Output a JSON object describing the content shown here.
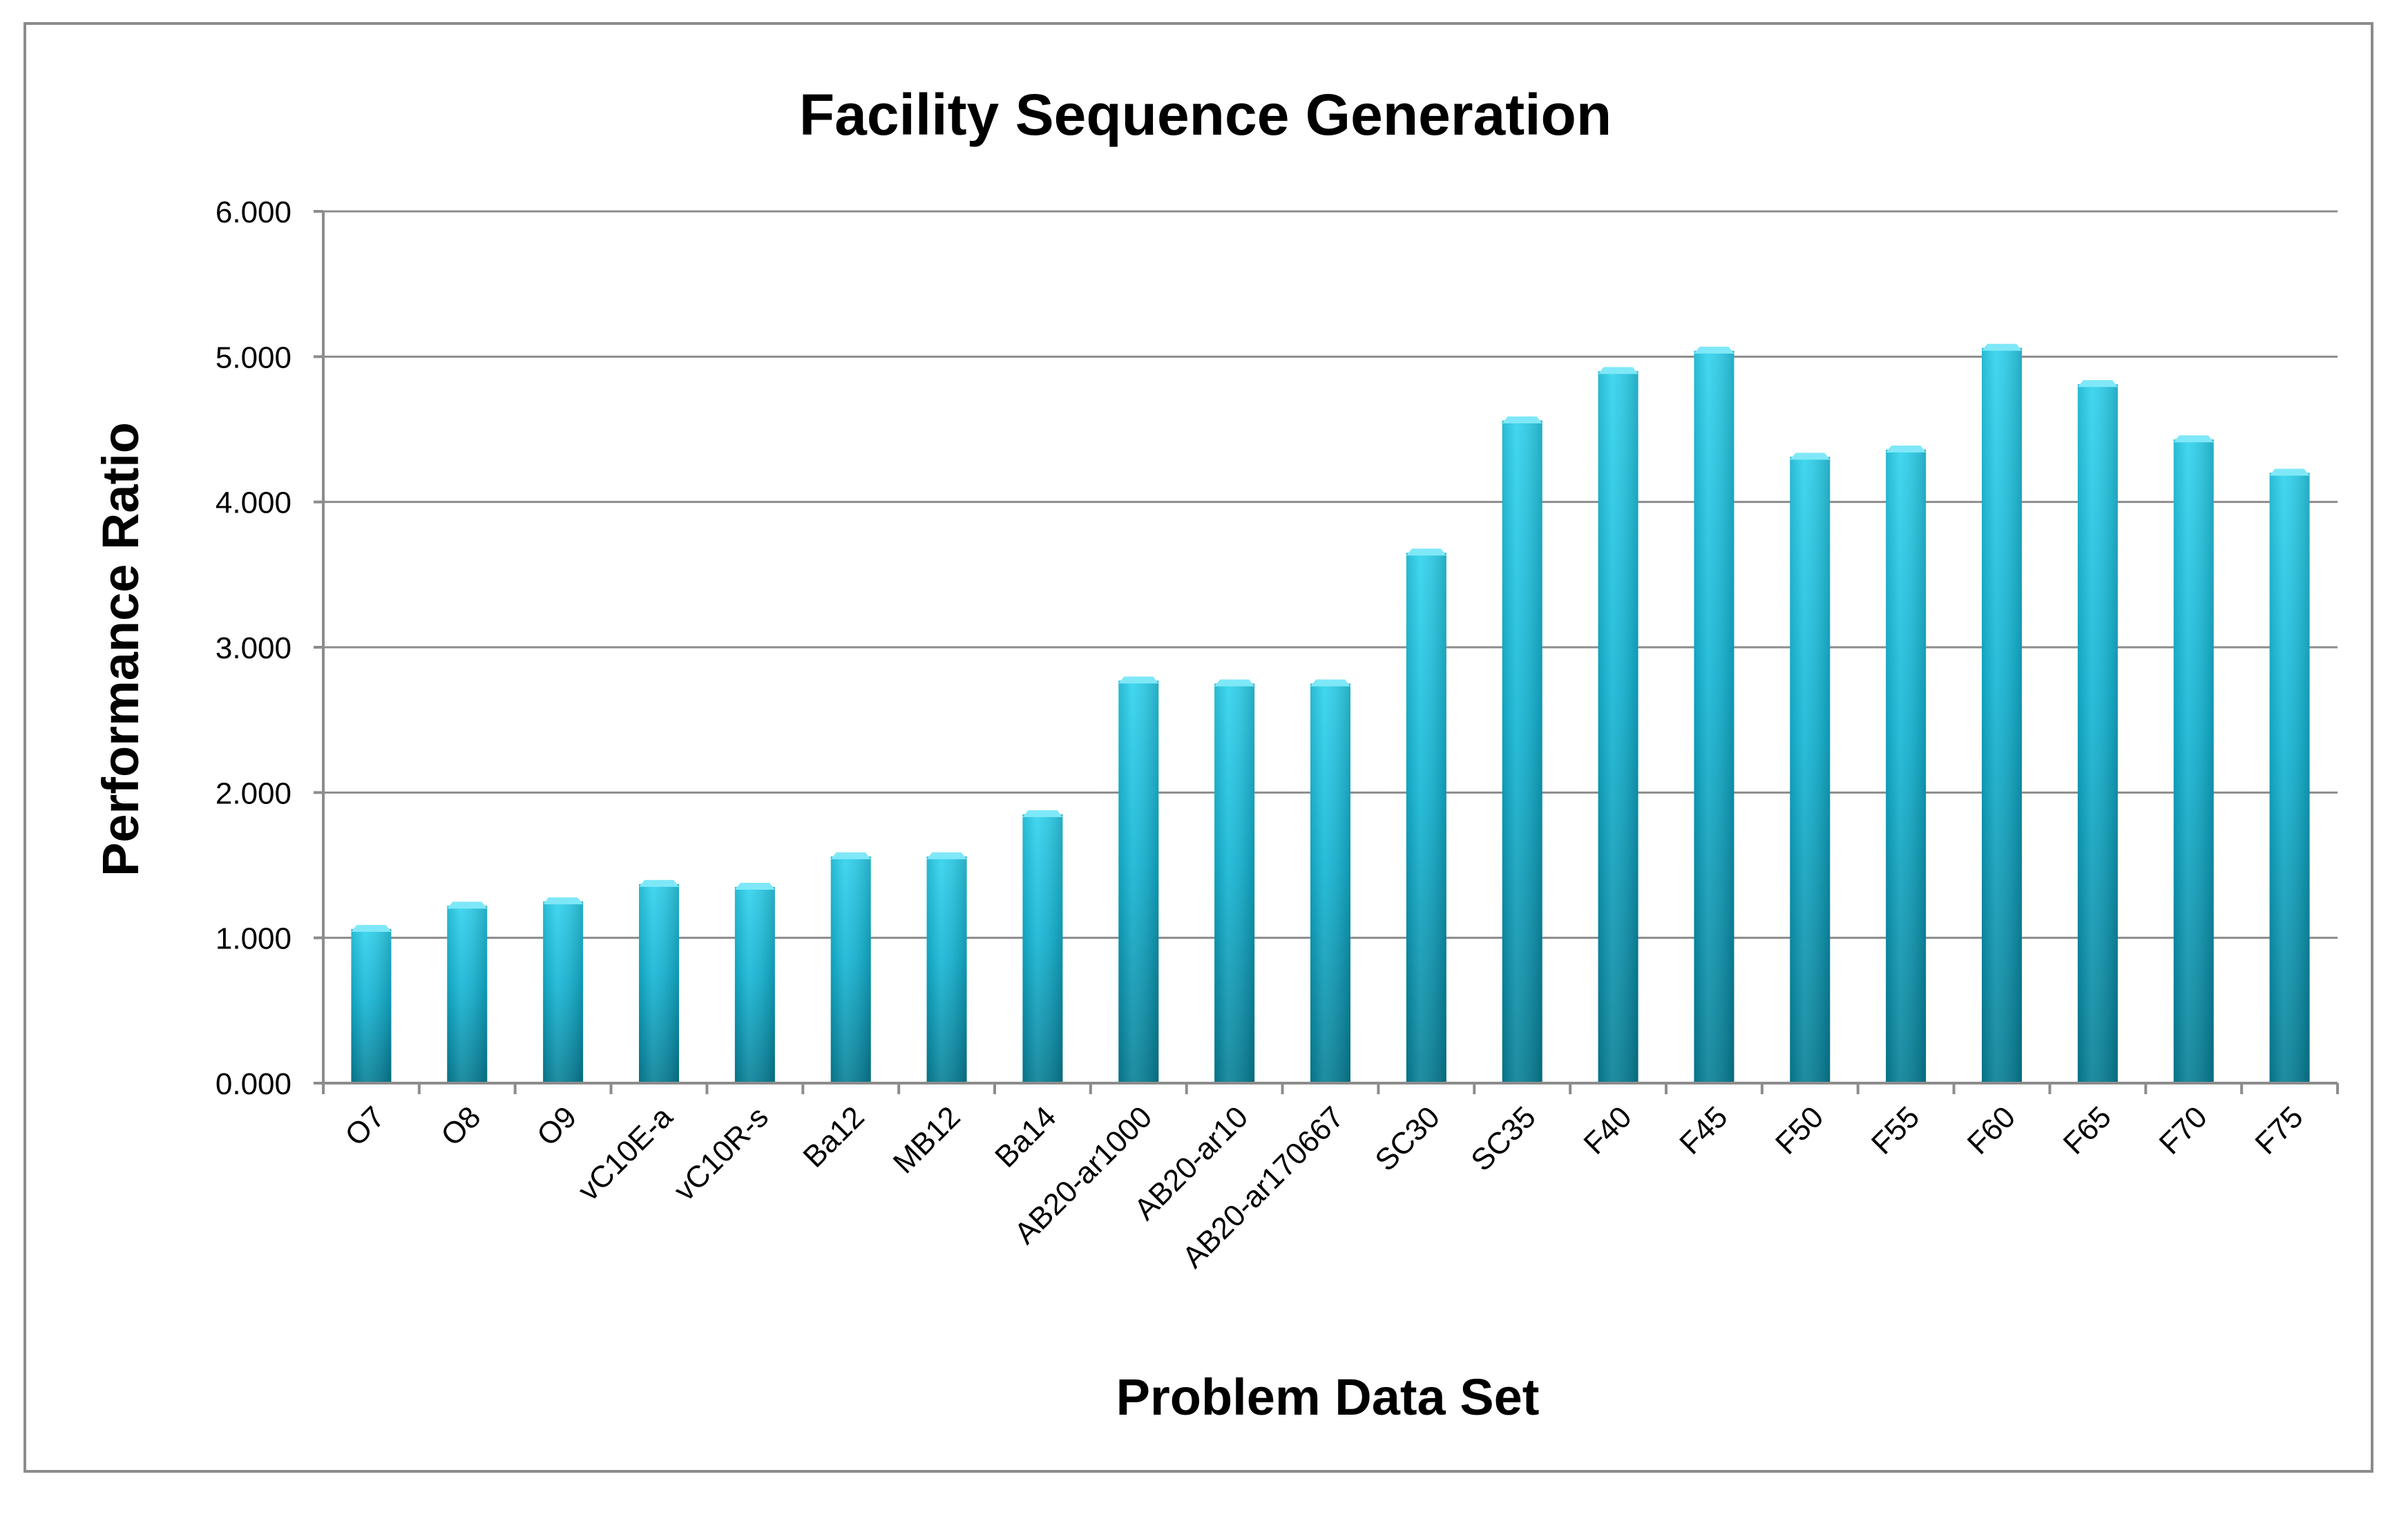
{
  "chart_data": {
    "type": "bar",
    "title": "Facility Sequence Generation",
    "xlabel": "Problem Data Set",
    "ylabel": "Performance Ratio",
    "ylim": [
      0,
      6
    ],
    "yticks": [
      "0.000",
      "1.000",
      "2.000",
      "3.000",
      "4.000",
      "5.000",
      "6.000"
    ],
    "grid": true,
    "legend": "none",
    "categories": [
      "O7",
      "O8",
      "O9",
      "vC10E-a",
      "vC10R-s",
      "Ba12",
      "MB12",
      "Ba14",
      "AB20-ar1000",
      "AB20-ar10",
      "AB20-ar170667",
      "SC30",
      "SC35",
      "F40",
      "F45",
      "F50",
      "F55",
      "F60",
      "F65",
      "F70",
      "F75"
    ],
    "values": [
      1.06,
      1.22,
      1.25,
      1.37,
      1.35,
      1.56,
      1.56,
      1.85,
      2.77,
      2.75,
      2.75,
      3.65,
      4.56,
      4.9,
      5.04,
      4.31,
      4.36,
      5.06,
      4.81,
      4.43,
      4.2
    ],
    "colors": {
      "bar_top": "#2ed2ee",
      "bar_mid": "#0fb2d3",
      "bar_bottom": "#067f97",
      "bar_cap": "#7fe8f8",
      "grid": "#8c8c8c"
    }
  }
}
